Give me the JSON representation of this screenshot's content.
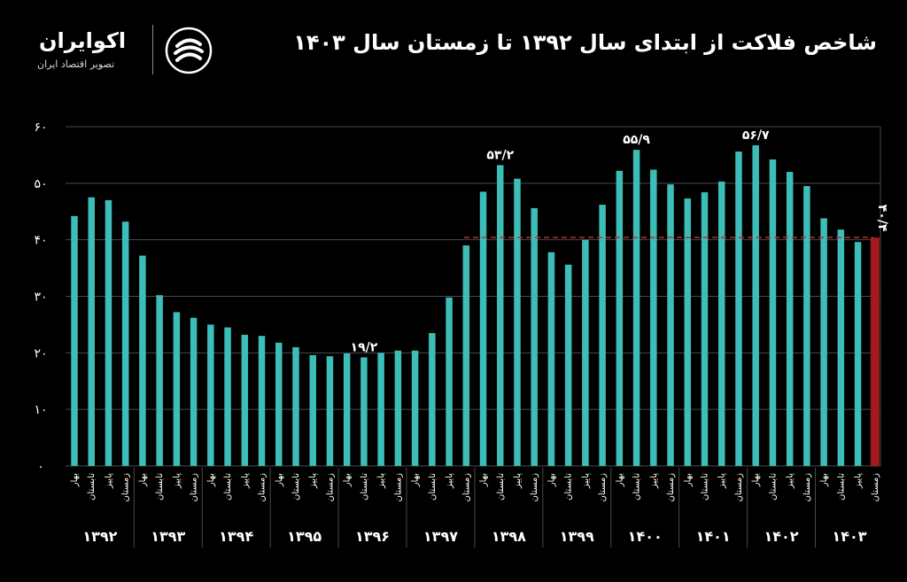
{
  "header": {
    "title": "شاخص فلاکت از ابتدای سال ۱۳۹۲ تا زمستان سال ۱۴۰۳",
    "logo_name": "اکوایران",
    "logo_tagline": "تصویر اقتصاد ایران"
  },
  "colors": {
    "bar": "#3dbdb8",
    "last_bar": "#a31a1c",
    "reference_line": "#c82a2a",
    "grid": "#4a4a4a",
    "text": "#ffffff"
  },
  "chart_data": {
    "type": "bar",
    "ylim": [
      0,
      60
    ],
    "yticks": [
      {
        "value": 0,
        "label": "۰"
      },
      {
        "value": 10,
        "label": "۱۰"
      },
      {
        "value": 20,
        "label": "۲۰"
      },
      {
        "value": 30,
        "label": "۳۰"
      },
      {
        "value": 40,
        "label": "۴۰"
      },
      {
        "value": 50,
        "label": "۵۰"
      },
      {
        "value": 60,
        "label": "۶۰"
      }
    ],
    "season_labels": [
      "بهار",
      "تابستان",
      "پاییز",
      "زمستان"
    ],
    "years": [
      "۱۳۹۲",
      "۱۳۹۳",
      "۱۳۹۴",
      "۱۳۹۵",
      "۱۳۹۶",
      "۱۳۹۷",
      "۱۳۹۸",
      "۱۳۹۹",
      "۱۴۰۰",
      "۱۴۰۱",
      "۱۴۰۲",
      "۱۴۰۳"
    ],
    "values": [
      44.2,
      47.5,
      47.0,
      43.2,
      37.2,
      30.2,
      27.2,
      26.2,
      25.0,
      24.5,
      23.2,
      23.0,
      21.8,
      21.0,
      19.6,
      19.4,
      19.9,
      19.2,
      20.0,
      20.4,
      20.4,
      23.5,
      29.8,
      39.0,
      48.5,
      53.2,
      50.8,
      45.6,
      37.8,
      35.6,
      40.0,
      46.2,
      52.2,
      55.9,
      52.4,
      49.8,
      47.3,
      48.4,
      50.3,
      55.6,
      56.7,
      54.2,
      52.0,
      49.5,
      43.8,
      41.8,
      39.6,
      40.4
    ],
    "highlight_last": true,
    "reference_line_value": 40.4,
    "annotations": [
      {
        "index": 17,
        "label": "۱۹/۲"
      },
      {
        "index": 25,
        "label": "۵۳/۲"
      },
      {
        "index": 33,
        "label": "۵۵/۹"
      },
      {
        "index": 40,
        "label": "۵۶/۷"
      },
      {
        "index": 47,
        "label": "۴۰/۴"
      }
    ]
  }
}
